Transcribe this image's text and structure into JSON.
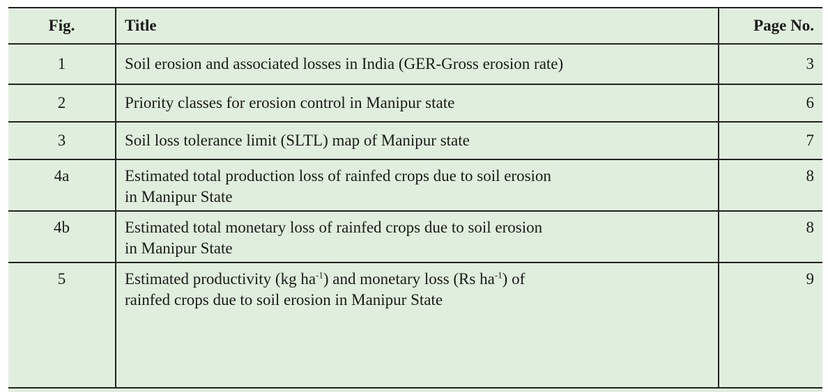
{
  "table": {
    "header": [
      "Fig.",
      "Title",
      "Page No."
    ],
    "rows": [
      {
        "fig": "1",
        "title": [
          [
            "Soil erosion and associated losses in India (GER-Gross erosion rate)"
          ]
        ],
        "page": "3"
      },
      {
        "fig": "2",
        "title": [
          [
            "Priority classes for erosion control in Manipur  state"
          ]
        ],
        "page": "6"
      },
      {
        "fig": "3",
        "title": [
          [
            "Soil loss tolerance limit (SLTL) map of Manipur state"
          ]
        ],
        "page": "7"
      },
      {
        "fig": "4a",
        "title": [
          [
            "Estimated total production loss of rainfed crops due to soil erosion"
          ],
          [
            "in Manipur State"
          ]
        ],
        "page": "8"
      },
      {
        "fig": "4b",
        "title": [
          [
            "Estimated total monetary loss of rainfed crops due to soil erosion"
          ],
          [
            "in Manipur State"
          ]
        ],
        "page": "8"
      },
      {
        "fig": "5",
        "title": [
          [
            "Estimated productivity (kg ha",
            {
              "sup": "-1"
            },
            ") and monetary loss (Rs ha",
            {
              "sup": "-1"
            },
            ") of"
          ],
          [
            "rainfed crops due to soil erosion in Manipur State"
          ]
        ],
        "page": "9"
      }
    ]
  }
}
